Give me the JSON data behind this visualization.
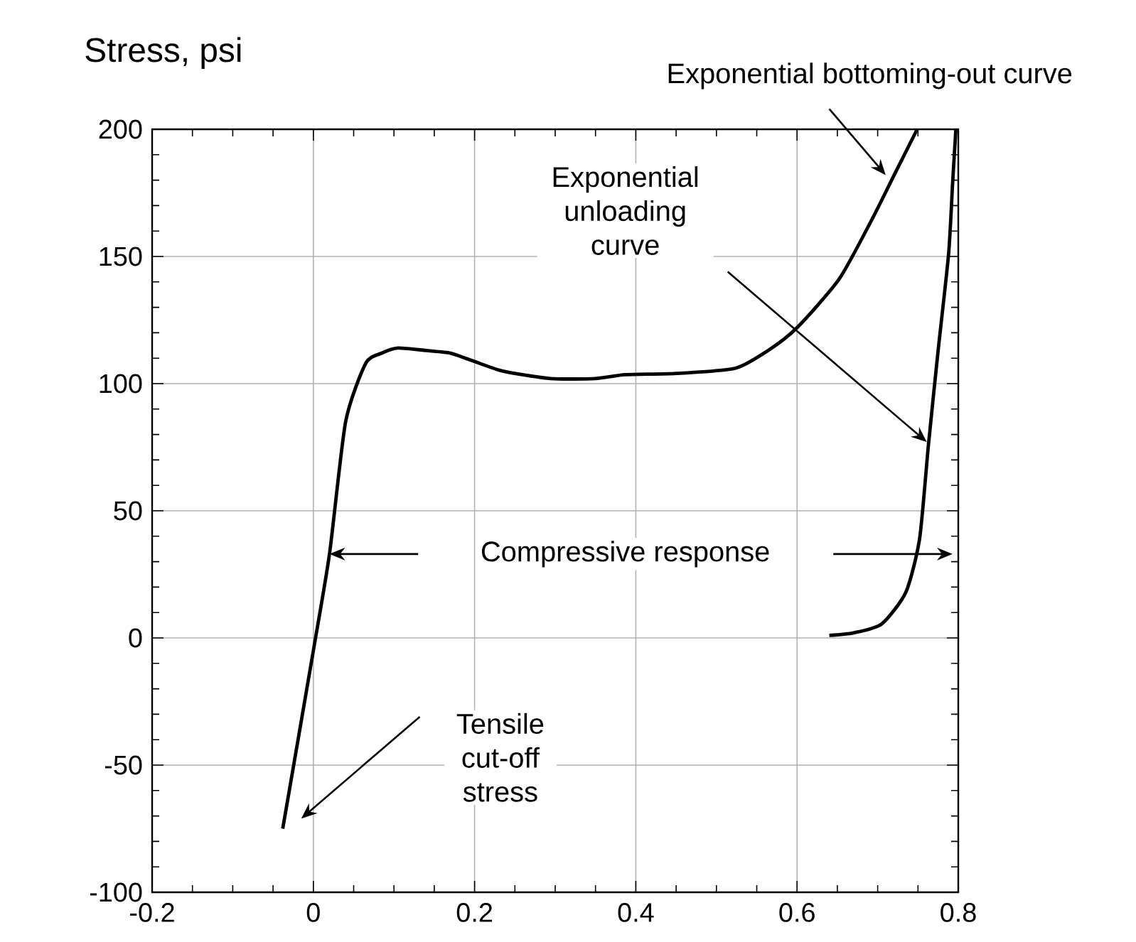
{
  "chart_data": {
    "type": "line",
    "ylabel": "Stress, psi",
    "xlim": [
      -0.2,
      0.8
    ],
    "ylim": [
      -100,
      200
    ],
    "xticks": [
      -0.2,
      0,
      0.2,
      0.4,
      0.6,
      0.8
    ],
    "yticks": [
      -100,
      -50,
      0,
      50,
      100,
      150,
      200
    ],
    "grid": true,
    "series": [
      {
        "color": "#000000",
        "x": [
          -0.038,
          0.0,
          0.02,
          0.04,
          0.065,
          0.085,
          0.105,
          0.14,
          0.17,
          0.193,
          0.234,
          0.294,
          0.35,
          0.387,
          0.45,
          0.523,
          0.564,
          0.6,
          0.652,
          0.692,
          0.722,
          0.749
        ],
        "values": [
          -75,
          -5,
          33,
          85,
          108,
          112,
          114,
          113,
          112,
          109.5,
          105,
          102,
          102,
          103.5,
          104,
          106,
          113,
          122,
          141,
          164,
          183,
          200
        ]
      },
      {
        "color": "#000000",
        "x": [
          0.64,
          0.67,
          0.705,
          0.735,
          0.752,
          0.763,
          0.775,
          0.788,
          0.793,
          0.797
        ],
        "values": [
          1,
          2,
          5.5,
          18,
          39,
          76,
          113,
          151,
          179,
          200
        ]
      }
    ],
    "annotations": [
      "Exponential bottoming-out curve",
      "Exponential unloading curve",
      "Compressive response",
      "Tensile cut-off stress"
    ]
  }
}
